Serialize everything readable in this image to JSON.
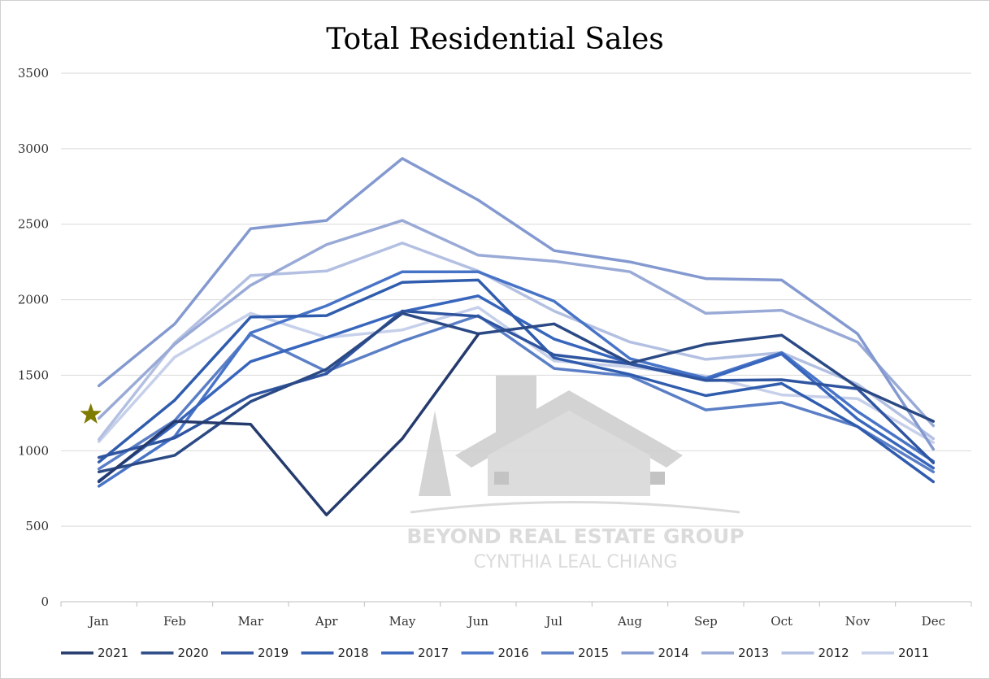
{
  "chart_data": {
    "type": "line",
    "title": "Total Residential Sales",
    "xlabel": "",
    "ylabel": "",
    "categories": [
      "Jan",
      "Feb",
      "Mar",
      "Apr",
      "May",
      "Jun",
      "Jul",
      "Aug",
      "Sep",
      "Oct",
      "Nov",
      "Dec"
    ],
    "ylim": [
      0,
      3500
    ],
    "yticks": [
      0,
      500,
      1000,
      1500,
      2000,
      2500,
      3000,
      3500
    ],
    "grid": true,
    "legend_position": "bottom",
    "highlight_marker": {
      "shape": "star",
      "category": "Jan",
      "value": 1240,
      "color": "#7f7a00"
    },
    "series": [
      {
        "name": "2021",
        "color": "#253b6e",
        "values": [
          795,
          1195,
          1175,
          575,
          1080,
          1770,
          null,
          null,
          null,
          null,
          null,
          null
        ]
      },
      {
        "name": "2020",
        "color": "#2b4a85",
        "values": [
          860,
          970,
          1325,
          1540,
          1910,
          1775,
          1840,
          1580,
          1705,
          1765,
          1420,
          1195
        ]
      },
      {
        "name": "2019",
        "color": "#2f55a0",
        "values": [
          955,
          1085,
          1365,
          1510,
          1925,
          1890,
          1635,
          1575,
          1465,
          1470,
          1410,
          920
        ]
      },
      {
        "name": "2018",
        "color": "#2f5cad",
        "values": [
          925,
          1335,
          1885,
          1895,
          2115,
          2130,
          1615,
          1505,
          1365,
          1445,
          1160,
          795
        ]
      },
      {
        "name": "2017",
        "color": "#3866bd",
        "values": [
          800,
          1175,
          1590,
          1750,
          1920,
          2025,
          1740,
          1580,
          1470,
          1640,
          1210,
          885
        ]
      },
      {
        "name": "2016",
        "color": "#4874c7",
        "values": [
          765,
          1095,
          1780,
          1960,
          2185,
          2185,
          1990,
          1610,
          1480,
          1650,
          1260,
          930
        ]
      },
      {
        "name": "2015",
        "color": "#5b7fc6",
        "values": [
          880,
          1200,
          1770,
          1525,
          1725,
          1895,
          1545,
          1495,
          1270,
          1320,
          1160,
          860
        ]
      },
      {
        "name": "2014",
        "color": "#8399d0",
        "values": [
          1430,
          1840,
          2470,
          2525,
          2935,
          2660,
          2325,
          2250,
          2140,
          2130,
          1775,
          1010
        ]
      },
      {
        "name": "2013",
        "color": "#9aaad7",
        "values": [
          1215,
          1705,
          2095,
          2365,
          2525,
          2295,
          2255,
          2185,
          1910,
          1930,
          1720,
          1165
        ]
      },
      {
        "name": "2012",
        "color": "#b3c0e2",
        "values": [
          1075,
          1715,
          2160,
          2190,
          2375,
          2190,
          1925,
          1720,
          1605,
          1650,
          1440,
          1080
        ]
      },
      {
        "name": "2011",
        "color": "#c7d0ea",
        "values": [
          1060,
          1620,
          1910,
          1750,
          1800,
          1950,
          1595,
          1555,
          1495,
          1370,
          1345,
          1055
        ]
      }
    ]
  },
  "watermark": {
    "line1": "BEYOND REAL ESTATE GROUP",
    "line2": "CYNTHIA LEAL CHIANG"
  }
}
